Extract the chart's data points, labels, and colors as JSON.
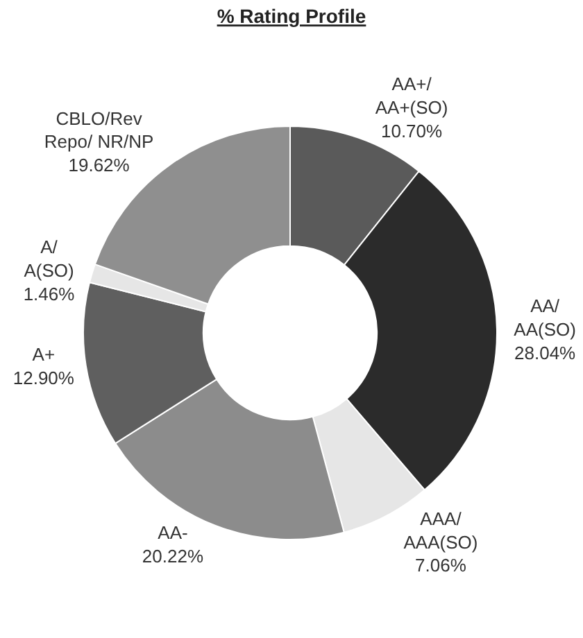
{
  "chart_data": {
    "type": "donut",
    "title": "% Rating Profile",
    "categories": [
      "AA+/\nAA+(SO)",
      "AA/\nAA(SO)",
      "AAA/\nAAA(SO)",
      "AA-",
      "A+",
      "A/\nA(SO)",
      "CBLO/Rev\nRepo/ NR/NP"
    ],
    "values": [
      10.7,
      28.04,
      7.06,
      20.22,
      12.9,
      1.46,
      19.62
    ],
    "value_labels": [
      "10.70%",
      "28.04%",
      "7.06%",
      "20.22%",
      "12.90%",
      "1.46%",
      "19.62%"
    ],
    "colors": [
      "#5a5a5a",
      "#2b2b2b",
      "#e6e6e6",
      "#8c8c8c",
      "#5f5f5f",
      "#e6e6e6",
      "#8f8f8f"
    ],
    "legend": false
  }
}
